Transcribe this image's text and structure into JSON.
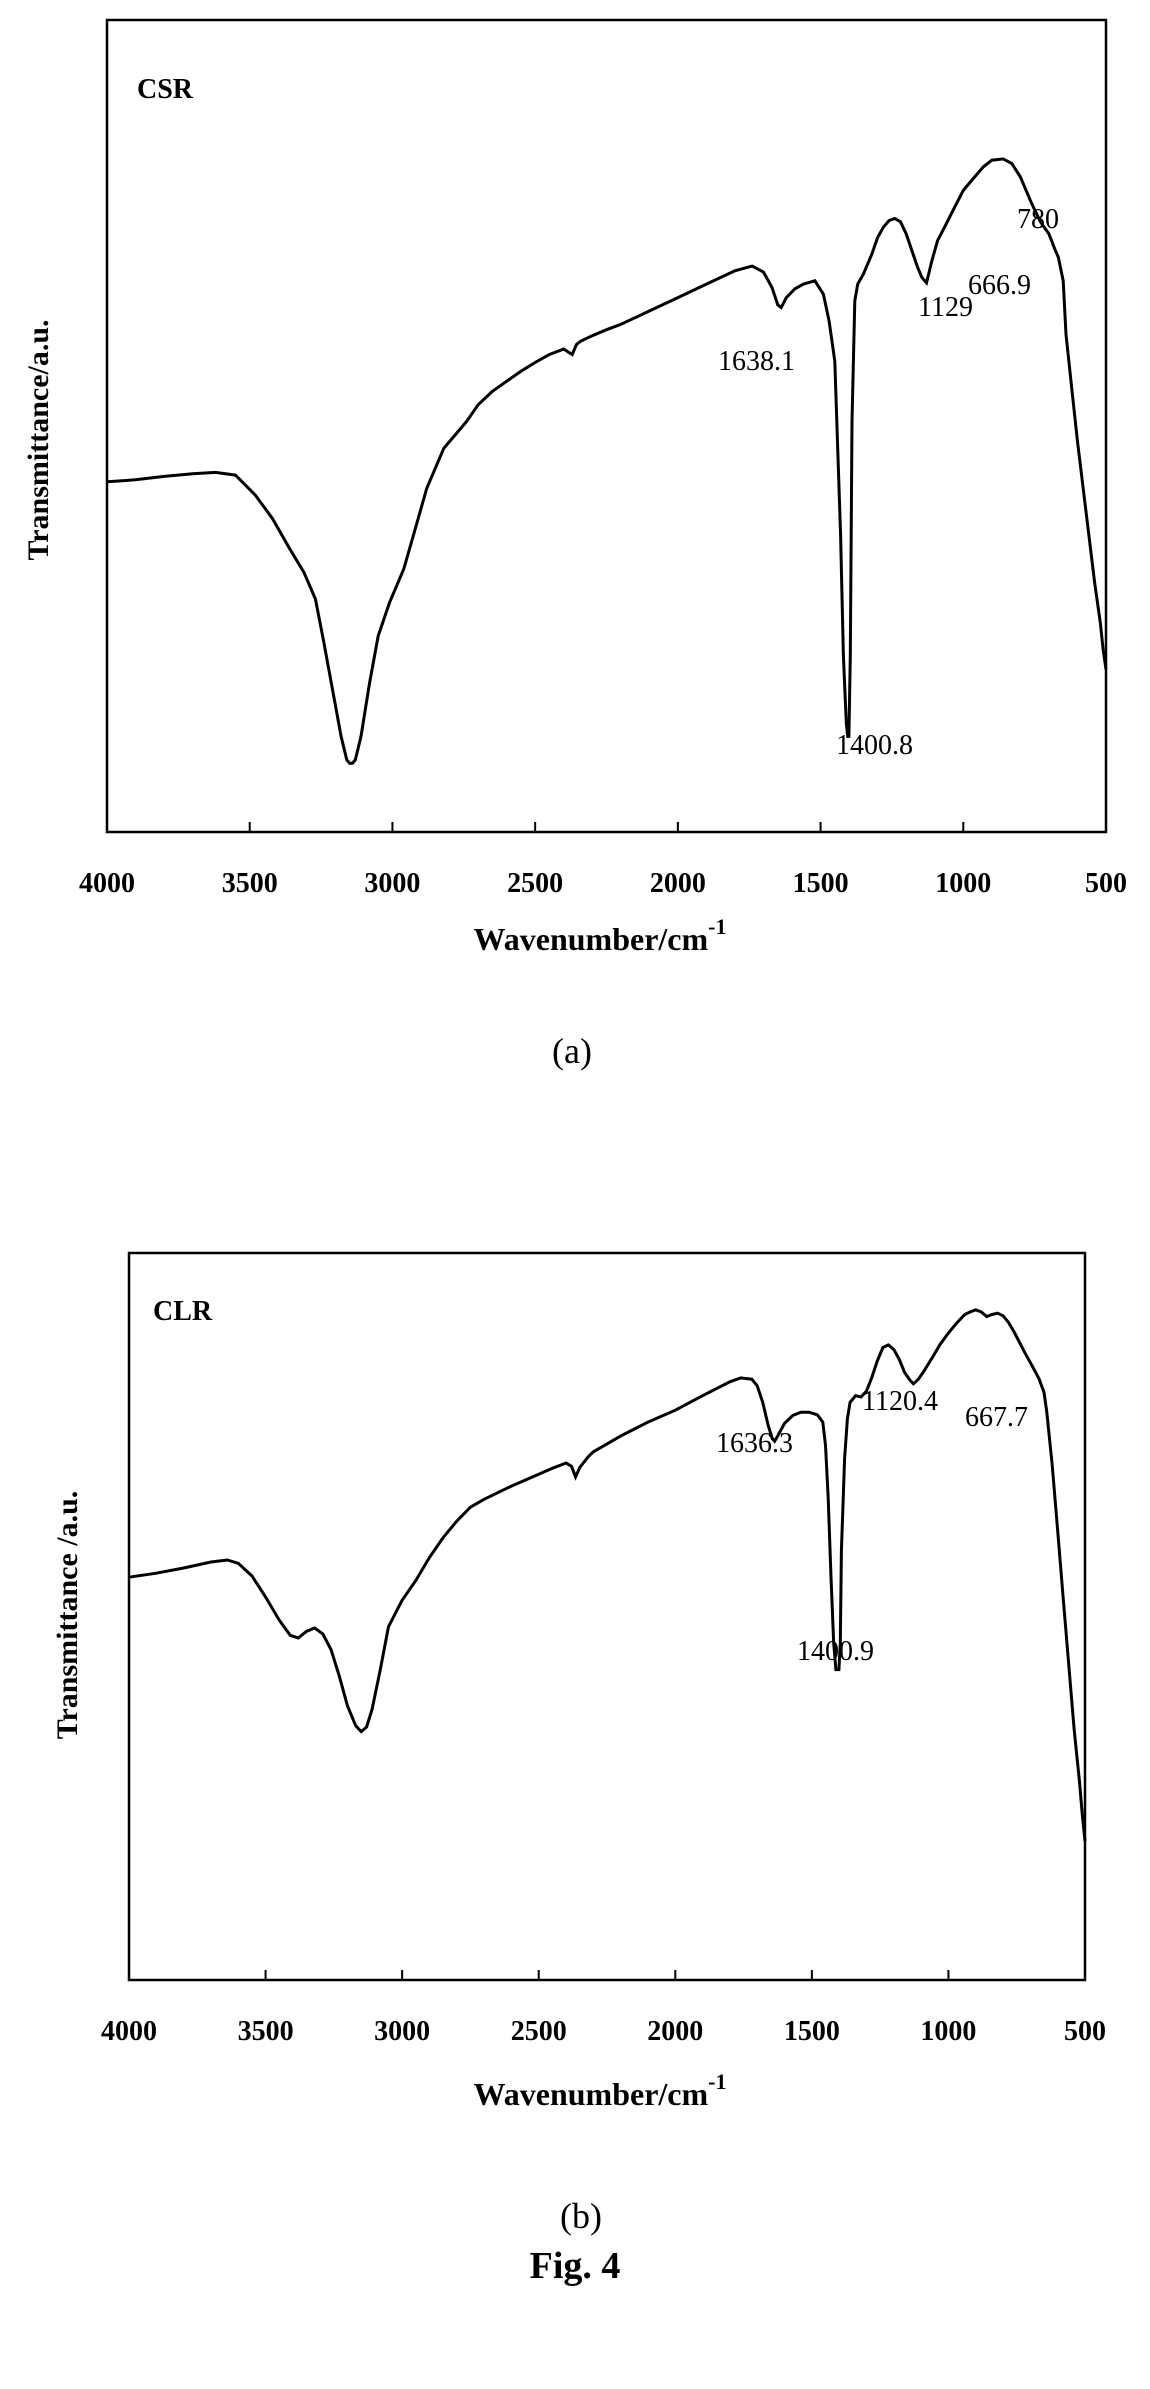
{
  "figure_caption": "Fig. 4",
  "chart_data": [
    {
      "type": "line",
      "panel_label": "(a)",
      "inset_label": "CSR",
      "xlabel": "Wavenumber/cm",
      "xlabel_sup": "-1",
      "ylabel": "Transmittance/a.u.",
      "xlim": [
        4000,
        500
      ],
      "ylim": [
        0,
        100
      ],
      "x_ticks": [
        "4000",
        "3500",
        "3000",
        "2500",
        "2000",
        "1500",
        "1000",
        "500"
      ],
      "grid": false,
      "series": [
        {
          "x": [
            4000,
            3900,
            3800,
            3700,
            3620,
            3550,
            3480,
            3420,
            3360,
            3310,
            3270,
            3240,
            3210,
            3180,
            3160,
            3150,
            3140,
            3130,
            3110,
            3080,
            3050,
            3010,
            2960,
            2920,
            2880,
            2850,
            2820,
            2780,
            2740,
            2700,
            2650,
            2600,
            2550,
            2500,
            2450,
            2400,
            2370,
            2355,
            2340,
            2300,
            2250,
            2200,
            2100,
            2000,
            1900,
            1800,
            1740,
            1700,
            1670,
            1650,
            1638,
            1620,
            1590,
            1560,
            1520,
            1490,
            1470,
            1450,
            1430,
            1420,
            1410,
            1405,
            1400.8,
            1396,
            1390,
            1380,
            1370,
            1350,
            1320,
            1300,
            1280,
            1260,
            1240,
            1220,
            1200,
            1180,
            1160,
            1145,
            1129,
            1110,
            1090,
            1060,
            1030,
            1000,
            960,
            930,
            900,
            860,
            830,
            800,
            780,
            760,
            730,
            700,
            680,
            666.9,
            650,
            640,
            620,
            600,
            580,
            560,
            540,
            520,
            510,
            500
          ],
          "y": [
            46,
            46.3,
            46.8,
            47.2,
            47.4,
            47,
            44,
            40.5,
            36,
            32.5,
            28.5,
            22,
            15,
            8,
            4.5,
            4,
            4,
            4.5,
            8,
            16,
            23,
            28,
            33,
            39,
            45,
            48,
            51,
            53,
            55,
            57.5,
            59.5,
            61,
            62.5,
            63.8,
            65,
            65.8,
            65,
            66.5,
            67,
            67.8,
            68.7,
            69.5,
            71.5,
            73.5,
            75.5,
            77.5,
            78.2,
            77.3,
            75,
            72.4,
            72,
            73.5,
            74.8,
            75.5,
            76,
            74,
            70,
            64,
            38,
            20,
            10,
            8,
            8,
            20,
            55,
            73,
            75.5,
            77,
            80,
            82.5,
            84,
            85,
            85.3,
            84.8,
            83,
            80.5,
            78,
            76.5,
            75.7,
            79,
            82,
            84.5,
            87,
            89.5,
            91.5,
            93,
            94,
            94.2,
            93.5,
            91.5,
            89.5,
            87.5,
            84.8,
            83,
            80.8,
            79.5,
            76,
            68,
            60,
            52,
            45,
            38,
            31,
            25,
            21,
            18
          ]
        }
      ],
      "annotations": [
        "1638.1",
        "1400.8",
        "1129",
        "780",
        "666.9"
      ]
    },
    {
      "type": "line",
      "panel_label": "(b)",
      "inset_label": "CLR",
      "xlabel": "Wavenumber/cm",
      "xlabel_sup": "-1",
      "ylabel": "Transmittance /a.u.",
      "xlim": [
        4000,
        500
      ],
      "ylim": [
        0,
        100
      ],
      "x_ticks": [
        "4000",
        "3500",
        "3000",
        "2500",
        "2000",
        "1500",
        "1000",
        "500"
      ],
      "grid": false,
      "series": [
        {
          "x": [
            4000,
            3900,
            3800,
            3700,
            3640,
            3600,
            3550,
            3500,
            3450,
            3410,
            3380,
            3350,
            3320,
            3290,
            3260,
            3230,
            3200,
            3170,
            3150,
            3130,
            3110,
            3080,
            3050,
            3000,
            2950,
            2900,
            2850,
            2800,
            2750,
            2700,
            2650,
            2600,
            2500,
            2450,
            2400,
            2380,
            2365,
            2350,
            2320,
            2300,
            2250,
            2200,
            2100,
            2000,
            1900,
            1800,
            1760,
            1720,
            1700,
            1680,
            1660,
            1645,
            1636.3,
            1625,
            1600,
            1570,
            1540,
            1510,
            1480,
            1460,
            1450,
            1440,
            1430,
            1420,
            1412,
            1405,
            1400.9,
            1396,
            1392,
            1380,
            1370,
            1360,
            1340,
            1320,
            1300,
            1280,
            1260,
            1240,
            1220,
            1200,
            1180,
            1160,
            1140,
            1128,
            1110,
            1090,
            1060,
            1030,
            1000,
            970,
            940,
            920,
            900,
            880,
            860,
            840,
            820,
            800,
            780,
            760,
            740,
            720,
            700,
            680,
            667.7,
            650,
            640,
            620,
            600,
            580,
            560,
            540,
            520,
            510,
            500
          ],
          "y": [
            58,
            58.6,
            59.4,
            60.3,
            60.6,
            60.1,
            58.2,
            55,
            51.5,
            49.2,
            48.8,
            49.8,
            50.3,
            49.4,
            47,
            43,
            38.5,
            35.5,
            34.6,
            35.3,
            38,
            44,
            50.5,
            54.5,
            57.5,
            61,
            64,
            66.5,
            68.6,
            69.8,
            70.8,
            71.8,
            73.6,
            74.5,
            75.3,
            74.8,
            73.2,
            74.6,
            76.2,
            77,
            78.2,
            79.4,
            81.5,
            83.3,
            85.5,
            87.6,
            88.2,
            88,
            87,
            84.5,
            81,
            79,
            78.6,
            79.4,
            81.3,
            82.5,
            83,
            83,
            82.6,
            81.5,
            78,
            70,
            58,
            48,
            44,
            44,
            44,
            48,
            62,
            76,
            82,
            84.5,
            85.5,
            85.3,
            86.2,
            88.3,
            90.8,
            92.8,
            93.2,
            92.5,
            91,
            89,
            87.8,
            87.3,
            88,
            89.2,
            91.2,
            93.3,
            95,
            96.5,
            97.8,
            98.2,
            98.5,
            98.2,
            97.5,
            97.8,
            98,
            97.6,
            96.6,
            95.2,
            93.6,
            92,
            90.5,
            89,
            88,
            86,
            83,
            75,
            65,
            55,
            45,
            35,
            27,
            22,
            18
          ]
        }
      ],
      "annotations": [
        "1636.3",
        "1400.9",
        "1120.4",
        "667.7"
      ]
    }
  ]
}
